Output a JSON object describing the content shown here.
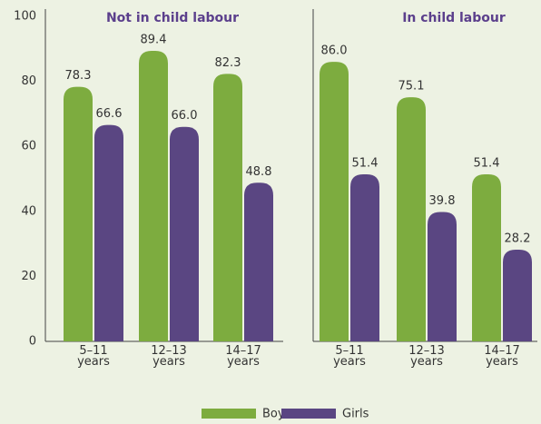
{
  "chart_data": [
    {
      "type": "bar",
      "title": "Not in child labour",
      "categories": [
        "5–11 years",
        "12–13 years",
        "14–17 years"
      ],
      "series": [
        {
          "name": "Boys",
          "color": "#7dac3f",
          "values": [
            78.3,
            89.4,
            82.3
          ],
          "value_labels": [
            "78.3",
            "89.4",
            "82.3"
          ]
        },
        {
          "name": "Girls",
          "color": "#5a4682",
          "values": [
            66.6,
            66.0,
            48.8
          ],
          "value_labels": [
            "66.6",
            "66.0",
            "48.8"
          ]
        }
      ],
      "ylim": [
        0,
        100
      ],
      "yticks": [
        0,
        20,
        40,
        60,
        80,
        100
      ],
      "grid": false
    },
    {
      "type": "bar",
      "title": "In child labour",
      "categories": [
        "5–11 years",
        "12–13 years",
        "14–17 years"
      ],
      "series": [
        {
          "color": "#7dac3f",
          "values": [
            86.0,
            75.1,
            51.4
          ],
          "value_labels": [
            "86.0",
            "75.1",
            "51.4"
          ]
        },
        {
          "color": "#5a4682",
          "values": [
            51.4,
            39.8,
            28.2
          ],
          "value_labels": [
            "51.4",
            "39.8",
            "28.2"
          ]
        }
      ],
      "ylim": [
        0,
        100
      ],
      "grid": false
    }
  ]
}
